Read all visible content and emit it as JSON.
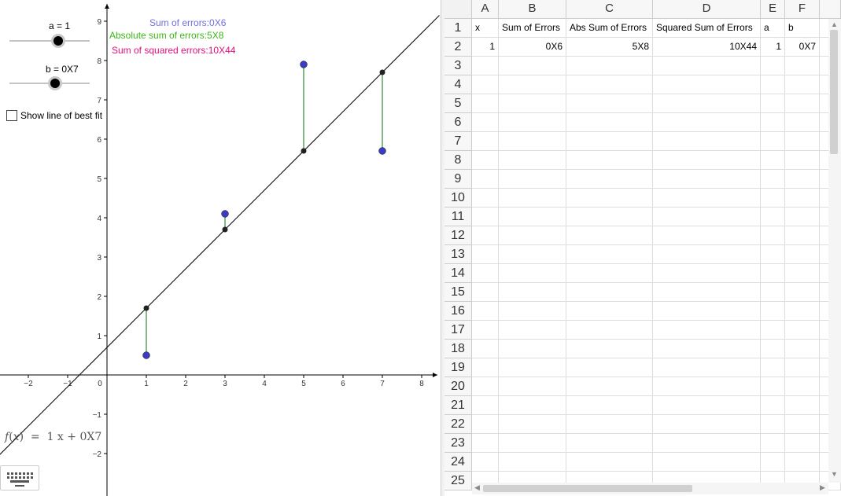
{
  "sliders": {
    "a_label": "a = 1",
    "b_label": "b = 0X7"
  },
  "checkbox_label": "Show line of best fit",
  "errors": {
    "sum": "Sum of errors:0X6",
    "abs": "Absolute sum of errors:5X8",
    "sq": "Sum of squared errors:10X44",
    "colors": {
      "sum": "#6f6fe0",
      "abs": "#3cb815",
      "sq": "#e0107a"
    }
  },
  "function_label": {
    "name": "f",
    "var": "x",
    "rhs": "1 x + 0X7"
  },
  "graph": {
    "x_ticks": [
      "−2",
      "−1",
      "0",
      "1",
      "2",
      "3",
      "4",
      "5",
      "6",
      "7",
      "8"
    ],
    "y_ticks_pos": [
      "1",
      "2",
      "3",
      "4",
      "5",
      "6",
      "7",
      "8",
      "9"
    ],
    "y_ticks_neg": [
      "−1",
      "−2"
    ],
    "line": {
      "slope": 1,
      "intercept": 0.7
    },
    "points": [
      {
        "x": 1,
        "y": 0.5
      },
      {
        "x": 3,
        "y": 4.1
      },
      {
        "x": 5,
        "y": 7.9
      },
      {
        "x": 7,
        "y": 5.7
      }
    ],
    "colors": {
      "point": "#3b3bbf",
      "line_point": "#222222",
      "residual": "#5aa05a",
      "line": "#000000"
    }
  },
  "spreadsheet": {
    "columns": [
      "A",
      "B",
      "C",
      "D",
      "E",
      "F"
    ],
    "rows": [
      "1",
      "2",
      "3",
      "4",
      "5",
      "6",
      "7",
      "8",
      "9",
      "10",
      "11",
      "12",
      "13",
      "14",
      "15",
      "16",
      "17",
      "18",
      "19",
      "20",
      "21",
      "22",
      "23",
      "24",
      "25"
    ],
    "row1": [
      "x",
      "Sum of Errors",
      "Abs Sum of Errors",
      "Squared Sum of Errors",
      "a",
      "b"
    ],
    "row2": [
      "1",
      "0X6",
      "5X8",
      "10X44",
      "1",
      "0X7"
    ]
  }
}
